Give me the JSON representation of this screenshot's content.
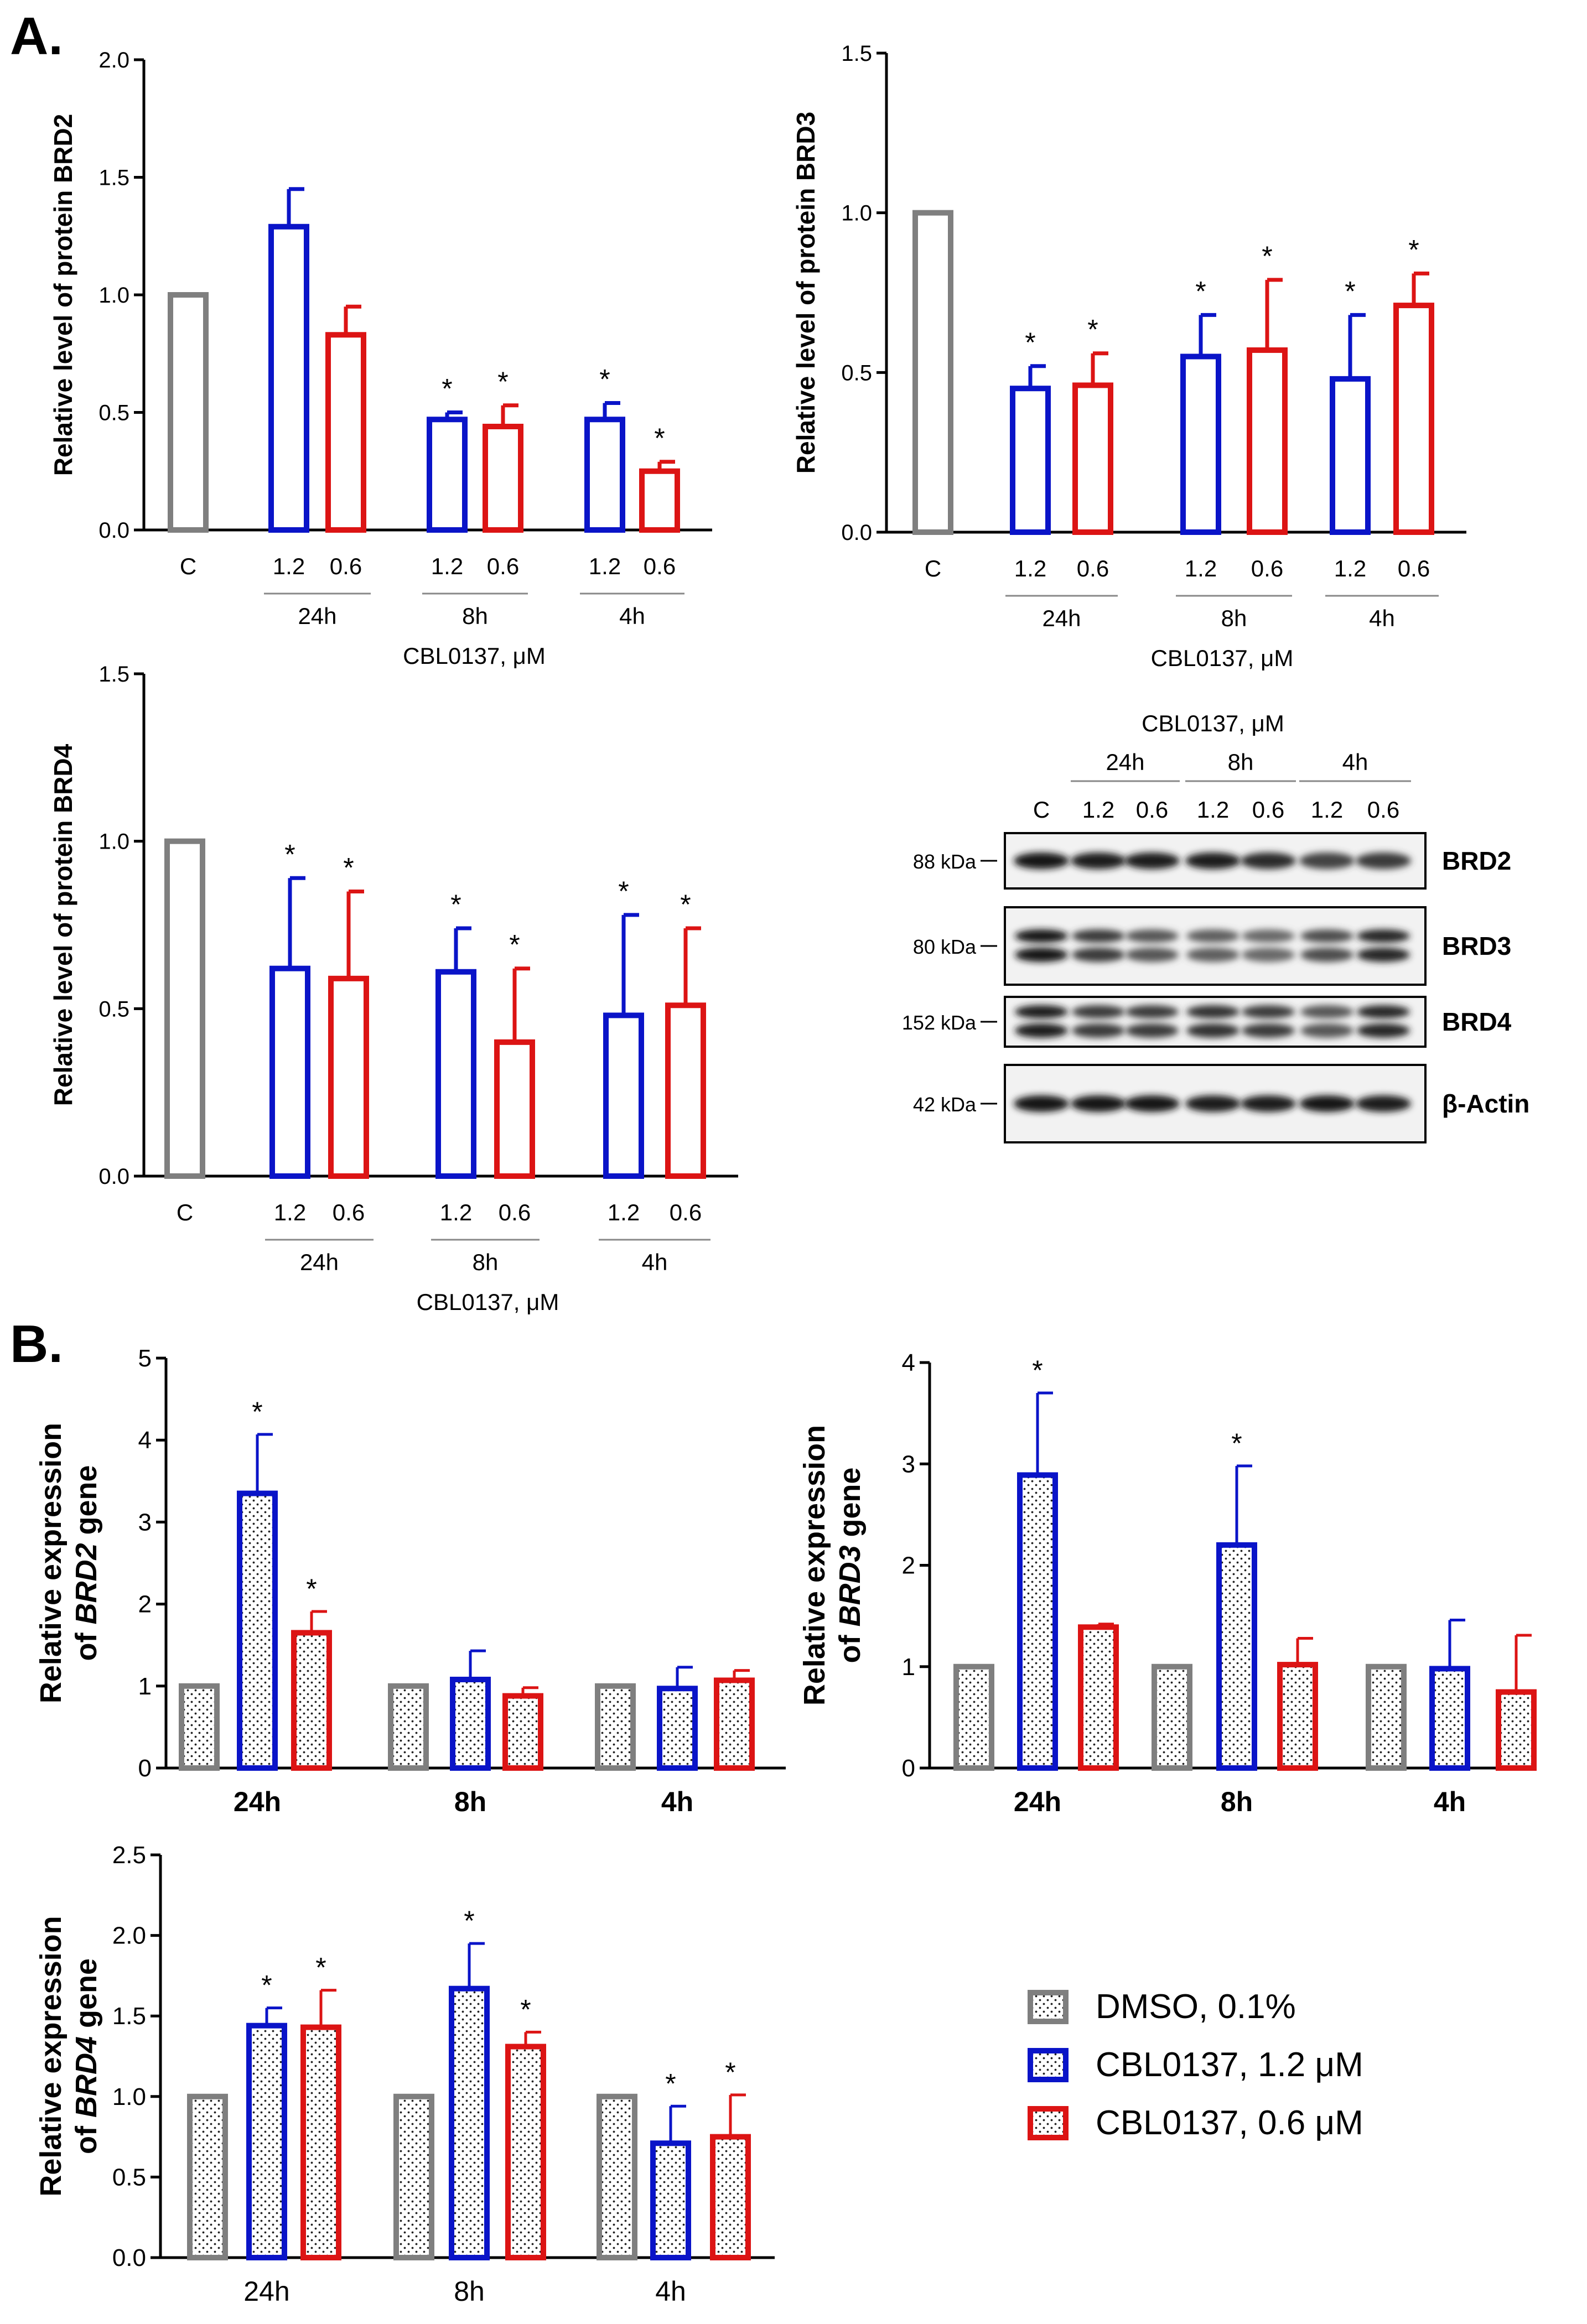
{
  "panel_labels": [
    "A.",
    "B."
  ],
  "colors": {
    "dmso": "#7f7f7f",
    "high": "#0a14c8",
    "low": "#dc1414",
    "axis": "#000000"
  },
  "group_labels": [
    "24h",
    "8h",
    "4h"
  ],
  "conc_labels": [
    "1.2",
    "0.6"
  ],
  "control_label": "C",
  "xlabel_a": "CBL0137, μM",
  "legend": {
    "items": [
      {
        "label": "DMSO, 0.1%",
        "color": "#7f7f7f"
      },
      {
        "label": "CBL0137, 1.2 μM",
        "color": "#0a14c8"
      },
      {
        "label": "CBL0137, 0.6 μM",
        "color": "#dc1414"
      }
    ]
  },
  "blot": {
    "header": "CBL0137, μM",
    "groups": [
      "24h",
      "8h",
      "4h"
    ],
    "lanes": [
      "C",
      "1.2",
      "0.6",
      "1.2",
      "0.6",
      "1.2",
      "0.6"
    ],
    "rows": [
      {
        "marker": "88 kDa",
        "protein": "BRD2",
        "intensity": [
          0.95,
          0.9,
          0.9,
          0.9,
          0.82,
          0.7,
          0.75
        ]
      },
      {
        "marker": "80 kDa",
        "protein": "BRD3",
        "intensity": [
          0.95,
          0.75,
          0.6,
          0.55,
          0.5,
          0.65,
          0.85
        ]
      },
      {
        "marker": "152 kDa",
        "protein": "BRD4",
        "intensity": [
          0.9,
          0.75,
          0.75,
          0.8,
          0.75,
          0.6,
          0.85
        ]
      },
      {
        "marker": "42 kDa",
        "protein": "β-Actin",
        "intensity": [
          0.95,
          0.92,
          0.92,
          0.9,
          0.9,
          0.92,
          0.9
        ]
      }
    ]
  },
  "chart_data": [
    {
      "type": "bar",
      "id": "brd2-protein",
      "ylabel": "Relative level of protein BRD2",
      "xlabel": "CBL0137, μM",
      "ylim": [
        0,
        2.0
      ],
      "yticks": [
        "0.0",
        "0.5",
        "1.0",
        "1.5",
        "2.0"
      ],
      "control": {
        "label": "C",
        "value": 1.0
      },
      "groups": [
        {
          "name": "24h",
          "bars": [
            {
              "conc": "1.2",
              "value": 1.29,
              "err": 0.16,
              "sig": ""
            },
            {
              "conc": "0.6",
              "value": 0.83,
              "err": 0.12,
              "sig": ""
            }
          ]
        },
        {
          "name": "8h",
          "bars": [
            {
              "conc": "1.2",
              "value": 0.47,
              "err": 0.03,
              "sig": "*"
            },
            {
              "conc": "0.6",
              "value": 0.44,
              "err": 0.09,
              "sig": "*"
            }
          ]
        },
        {
          "name": "4h",
          "bars": [
            {
              "conc": "1.2",
              "value": 0.47,
              "err": 0.07,
              "sig": "*"
            },
            {
              "conc": "0.6",
              "value": 0.25,
              "err": 0.04,
              "sig": "*"
            }
          ]
        }
      ]
    },
    {
      "type": "bar",
      "id": "brd3-protein",
      "ylabel": "Relative level of protein BRD3",
      "xlabel": "CBL0137, μM",
      "ylim": [
        0,
        1.5
      ],
      "yticks": [
        "0.0",
        "0.5",
        "1.0",
        "1.5"
      ],
      "control": {
        "label": "C",
        "value": 1.0
      },
      "groups": [
        {
          "name": "24h",
          "bars": [
            {
              "conc": "1.2",
              "value": 0.45,
              "err": 0.07,
              "sig": "*"
            },
            {
              "conc": "0.6",
              "value": 0.46,
              "err": 0.1,
              "sig": "*"
            }
          ]
        },
        {
          "name": "8h",
          "bars": [
            {
              "conc": "1.2",
              "value": 0.55,
              "err": 0.13,
              "sig": "*"
            },
            {
              "conc": "0.6",
              "value": 0.57,
              "err": 0.22,
              "sig": "*"
            }
          ]
        },
        {
          "name": "4h",
          "bars": [
            {
              "conc": "1.2",
              "value": 0.48,
              "err": 0.2,
              "sig": "*"
            },
            {
              "conc": "0.6",
              "value": 0.71,
              "err": 0.1,
              "sig": "*"
            }
          ]
        }
      ]
    },
    {
      "type": "bar",
      "id": "brd4-protein",
      "ylabel": "Relative level of protein BRD4",
      "xlabel": "CBL0137, μM",
      "ylim": [
        0,
        1.5
      ],
      "yticks": [
        "0.0",
        "0.5",
        "1.0",
        "1.5"
      ],
      "control": {
        "label": "C",
        "value": 1.0
      },
      "groups": [
        {
          "name": "24h",
          "bars": [
            {
              "conc": "1.2",
              "value": 0.62,
              "err": 0.27,
              "sig": "*"
            },
            {
              "conc": "0.6",
              "value": 0.59,
              "err": 0.26,
              "sig": "*"
            }
          ]
        },
        {
          "name": "8h",
          "bars": [
            {
              "conc": "1.2",
              "value": 0.61,
              "err": 0.13,
              "sig": "*"
            },
            {
              "conc": "0.6",
              "value": 0.4,
              "err": 0.22,
              "sig": "*"
            }
          ]
        },
        {
          "name": "4h",
          "bars": [
            {
              "conc": "1.2",
              "value": 0.48,
              "err": 0.3,
              "sig": "*"
            },
            {
              "conc": "0.6",
              "value": 0.51,
              "err": 0.23,
              "sig": "*"
            }
          ]
        }
      ]
    },
    {
      "type": "bar",
      "id": "brd2-gene",
      "ylabel_parts": [
        "Relative expression",
        "of ",
        "BRD2",
        " gene"
      ],
      "ylim": [
        0,
        5
      ],
      "yticks": [
        "0",
        "1",
        "2",
        "3",
        "4",
        "5"
      ],
      "categories": [
        "24h",
        "8h",
        "4h"
      ],
      "series": [
        {
          "name": "DMSO, 0.1%",
          "values": [
            1.0,
            1.0,
            1.0
          ],
          "err": [
            0.0,
            0.0,
            0.0
          ],
          "sig": [
            "",
            "",
            ""
          ]
        },
        {
          "name": "CBL0137, 1.2 μM",
          "values": [
            3.35,
            1.08,
            0.97
          ],
          "err": [
            0.72,
            0.35,
            0.26
          ],
          "sig": [
            "*",
            "",
            ""
          ]
        },
        {
          "name": "CBL0137, 0.6 μM",
          "values": [
            1.65,
            0.88,
            1.07
          ],
          "err": [
            0.26,
            0.1,
            0.12
          ],
          "sig": [
            "*",
            "",
            ""
          ]
        }
      ]
    },
    {
      "type": "bar",
      "id": "brd3-gene",
      "ylabel_parts": [
        "Relative expression",
        "of ",
        "BRD3",
        " gene"
      ],
      "ylim": [
        0,
        4
      ],
      "yticks": [
        "0",
        "1",
        "2",
        "3",
        "4"
      ],
      "categories": [
        "24h",
        "8h",
        "4h"
      ],
      "series": [
        {
          "name": "DMSO, 0.1%",
          "values": [
            1.0,
            1.0,
            1.0
          ],
          "err": [
            0.0,
            0.0,
            0.0
          ],
          "sig": [
            "",
            "",
            ""
          ]
        },
        {
          "name": "CBL0137, 1.2 μM",
          "values": [
            2.89,
            2.2,
            0.98
          ],
          "err": [
            0.81,
            0.78,
            0.48
          ],
          "sig": [
            "*",
            "*",
            ""
          ]
        },
        {
          "name": "CBL0137, 0.6 μM",
          "values": [
            1.39,
            1.02,
            0.75
          ],
          "err": [
            0.03,
            0.26,
            0.56
          ],
          "sig": [
            "",
            "",
            ""
          ]
        }
      ]
    },
    {
      "type": "bar",
      "id": "brd4-gene",
      "ylabel_parts": [
        "Relative expression",
        "of ",
        "BRD4",
        " gene"
      ],
      "ylim": [
        0,
        2.5
      ],
      "yticks": [
        "0.0",
        "0.5",
        "1.0",
        "1.5",
        "2.0",
        "2.5"
      ],
      "categories": [
        "24h",
        "8h",
        "4h"
      ],
      "series": [
        {
          "name": "DMSO, 0.1%",
          "values": [
            1.0,
            1.0,
            1.0
          ],
          "err": [
            0.0,
            0.0,
            0.0
          ],
          "sig": [
            "",
            "",
            ""
          ]
        },
        {
          "name": "CBL0137, 1.2 μM",
          "values": [
            1.44,
            1.67,
            0.71
          ],
          "err": [
            0.11,
            0.28,
            0.23
          ],
          "sig": [
            "*",
            "*",
            "*"
          ]
        },
        {
          "name": "CBL0137, 0.6 μM",
          "values": [
            1.43,
            1.31,
            0.75
          ],
          "err": [
            0.23,
            0.09,
            0.26
          ],
          "sig": [
            "*",
            "*",
            "*"
          ]
        }
      ]
    }
  ]
}
